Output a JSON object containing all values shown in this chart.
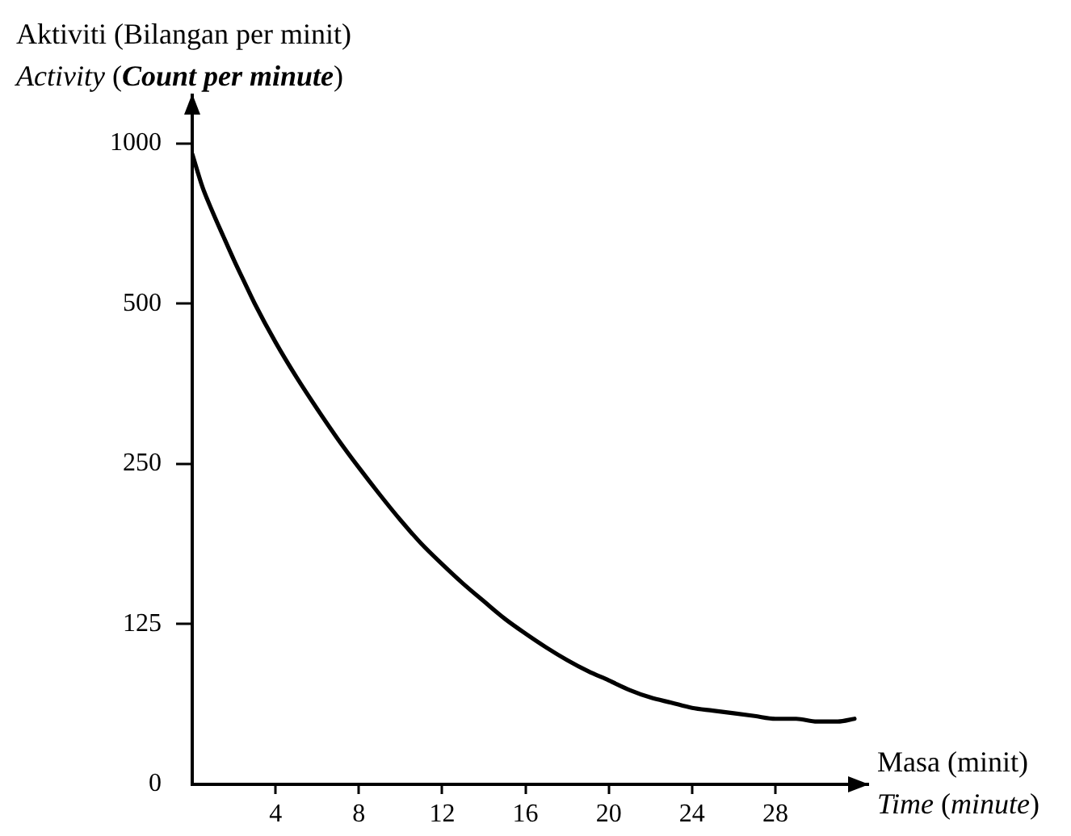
{
  "chart_data": {
    "type": "line",
    "xlabel": "Masa (minit)\nTime (minute)",
    "ylabel": "Aktiviti (Bilangan per minit)\nActivity (Count per minute)",
    "x": [
      0,
      0.5,
      1,
      1.5,
      2,
      2.5,
      3,
      4,
      5,
      6,
      7,
      8,
      9,
      10,
      11,
      12,
      13,
      14,
      15,
      16,
      17,
      18,
      19,
      20,
      21,
      22,
      23,
      24,
      25,
      26,
      27,
      28,
      29,
      30,
      31,
      31.8
    ],
    "values": [
      955,
      826,
      740,
      668,
      604,
      549,
      500,
      423,
      364,
      317,
      278,
      246,
      219,
      196,
      177,
      162,
      149,
      138,
      128,
      120,
      113,
      107,
      102,
      98,
      94,
      91,
      89,
      87,
      86,
      85,
      84,
      83,
      83,
      82,
      82,
      83
    ],
    "color": "#000000",
    "log": true,
    "xlim": [
      0,
      32.5
    ],
    "xticks": [
      4,
      8,
      12,
      16,
      20,
      24,
      28
    ],
    "ylim": [
      0,
      1240
    ],
    "yticks": [
      0,
      125,
      250,
      500,
      1000
    ]
  }
}
